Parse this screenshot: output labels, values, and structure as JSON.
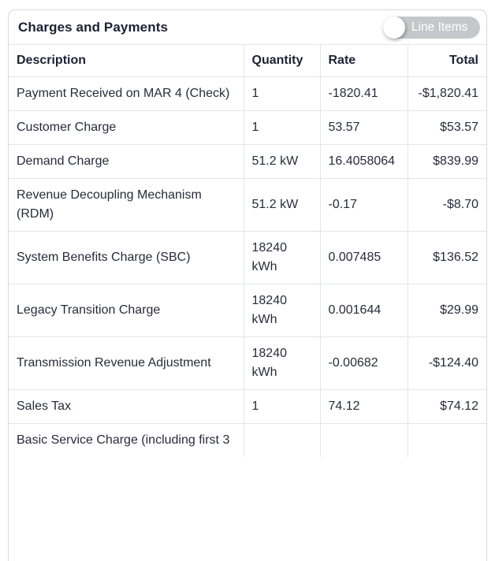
{
  "header": {
    "title": "Charges and Payments",
    "toggle": {
      "label": "Line Items",
      "state": "off"
    }
  },
  "table": {
    "columns": [
      "Description",
      "Quantity",
      "Rate",
      "Total"
    ],
    "rows": [
      {
        "description": "Payment Received on MAR 4 (Check)",
        "quantity": "1",
        "rate": "-1820.41",
        "total": "-$1,820.41"
      },
      {
        "description": "Customer Charge",
        "quantity": "1",
        "rate": "53.57",
        "total": "$53.57"
      },
      {
        "description": "Demand Charge",
        "quantity": "51.2 kW",
        "rate": "16.4058064",
        "total": "$839.99"
      },
      {
        "description": "Revenue Decoupling Mechanism (RDM)",
        "quantity": "51.2 kW",
        "rate": "-0.17",
        "total": "-$8.70"
      },
      {
        "description": "System Benefits Charge (SBC)",
        "quantity": "18240 kWh",
        "rate": "0.007485",
        "total": "$136.52"
      },
      {
        "description": "Legacy Transition Charge",
        "quantity": "18240 kWh",
        "rate": "0.001644",
        "total": "$29.99"
      },
      {
        "description": "Transmission Revenue Adjustment",
        "quantity": "18240 kWh",
        "rate": "-0.00682",
        "total": "-$124.40"
      },
      {
        "description": "Sales Tax",
        "quantity": "1",
        "rate": "74.12",
        "total": "$74.12"
      },
      {
        "description": "Basic Service Charge (including first 3",
        "quantity": "",
        "rate": "",
        "total": ""
      }
    ]
  },
  "colors": {
    "title_text": "#1c2233",
    "body_text": "#272c3a",
    "card_border": "#d7d9dc",
    "cell_border": "#e3e5e8",
    "toggle_off_bg": "#c5c8ca",
    "toggle_knob": "#ffffff",
    "toggle_label": "#ffffff"
  }
}
